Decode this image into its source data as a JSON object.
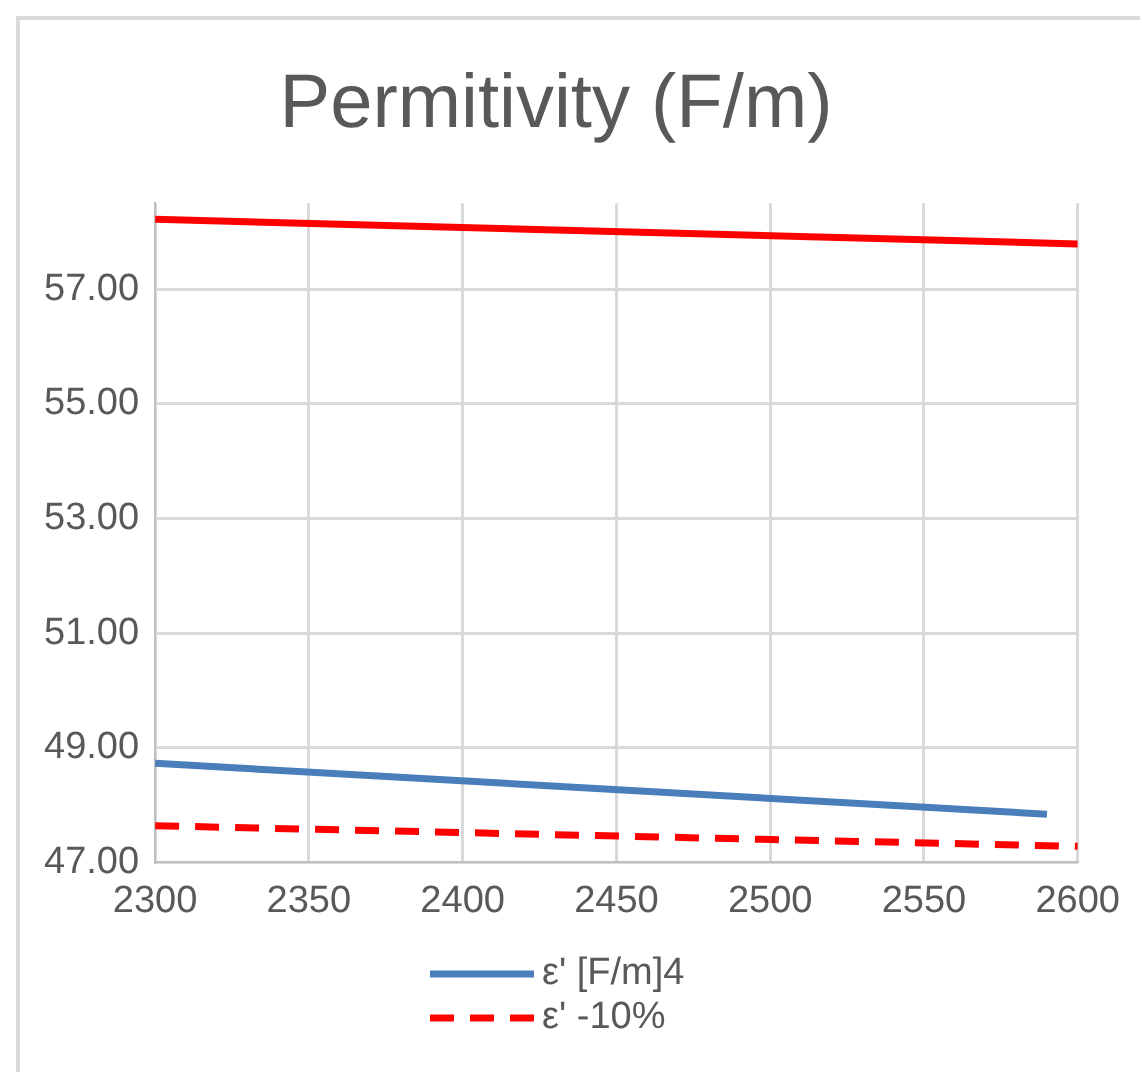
{
  "chart_data": {
    "type": "line",
    "title": "Permitivity (F/m)",
    "series": [
      {
        "color": "#ff0000",
        "x": [
          2300,
          2600
        ],
        "values": [
          58.22,
          57.79
        ],
        "line_style": "solid"
      },
      {
        "name": "ε' [F/m]4",
        "color": "#4a7ebb",
        "x": [
          2300,
          2590
        ],
        "values": [
          48.73,
          47.84
        ],
        "line_style": "solid"
      },
      {
        "name": "ε' -10%",
        "color": "#ff0000",
        "x": [
          2300,
          2600
        ],
        "values": [
          47.64,
          47.28
        ],
        "line_style": "dashed"
      }
    ],
    "xlim": [
      2300,
      2600
    ],
    "xticks": [
      2300,
      2350,
      2400,
      2450,
      2500,
      2550,
      2600
    ],
    "ylim": [
      47,
      58.5
    ],
    "yticks": [
      {
        "value": 47,
        "label": "47.00"
      },
      {
        "value": 49,
        "label": "49.00"
      },
      {
        "value": 51,
        "label": "51.00"
      },
      {
        "value": 53,
        "label": "53.00"
      },
      {
        "value": 55,
        "label": "55.00"
      },
      {
        "value": 57,
        "label": "57.00"
      }
    ],
    "grid": true,
    "legend": "bottom",
    "marker": "none"
  }
}
